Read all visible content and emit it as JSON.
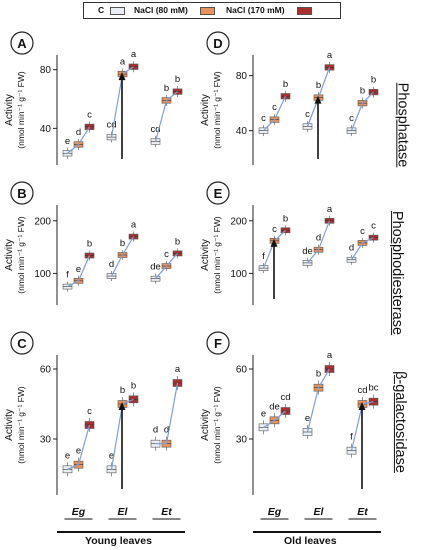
{
  "legend": {
    "items": [
      {
        "label": "C",
        "color": "#eaeff5"
      },
      {
        "label": "NaCl (80 mM)",
        "color": "#e8925a"
      },
      {
        "label": "NaCl (170 mM)",
        "color": "#a8302f"
      }
    ]
  },
  "side_titles": [
    "Phosphatase",
    "Phosphodiesterase",
    "β-galactosidase"
  ],
  "bottom_labels": {
    "young": "Young leaves",
    "old": "Old leaves"
  },
  "colors": {
    "control": "#eaeff5",
    "nacl80": "#e8925a",
    "nacl170": "#a8302f",
    "line": "#7f9ed6"
  },
  "chart_data": [
    {
      "panel": "A",
      "type": "box",
      "ylabel_line1": "Activity",
      "ylabel_line2": "(nmol min⁻¹ g⁻¹ FW)",
      "ylim": [
        15,
        90
      ],
      "yticks": [
        40,
        80
      ],
      "categories": [
        "Eg",
        "El",
        "Et"
      ],
      "series": [
        {
          "name": "C",
          "values": [
            23,
            34,
            31
          ],
          "letters": [
            "e",
            "cd",
            "cd"
          ]
        },
        {
          "name": "NaCl (80 mM)",
          "values": [
            29,
            77,
            59
          ],
          "letters": [
            "d",
            "a",
            "b"
          ]
        },
        {
          "name": "NaCl (170 mM)",
          "values": [
            41,
            82,
            65
          ],
          "letters": [
            "c",
            "a",
            "b"
          ]
        }
      ],
      "arrow_group": "El"
    },
    {
      "panel": "B",
      "type": "box",
      "ylabel_line1": "Activity",
      "ylabel_line2": "(nmol min⁻¹ g⁻¹ FW)",
      "ylim": [
        40,
        230
      ],
      "yticks": [
        100,
        200
      ],
      "categories": [
        "Eg",
        "El",
        "Et"
      ],
      "series": [
        {
          "name": "C",
          "values": [
            75,
            95,
            90
          ],
          "letters": [
            "f",
            "d",
            "de"
          ]
        },
        {
          "name": "NaCl (80 mM)",
          "values": [
            86,
            135,
            114
          ],
          "letters": [
            "e",
            "b",
            "c"
          ]
        },
        {
          "name": "NaCl (170 mM)",
          "values": [
            134,
            170,
            138
          ],
          "letters": [
            "b",
            "a",
            "b"
          ]
        }
      ],
      "arrow_group": null
    },
    {
      "panel": "C",
      "type": "box",
      "ylabel_line1": "Activity",
      "ylabel_line2": "(nmol min⁻¹ g⁻¹ FW)",
      "ylim": [
        6,
        66
      ],
      "yticks": [
        30,
        60
      ],
      "categories": [
        "Eg",
        "El",
        "Et"
      ],
      "series": [
        {
          "name": "C",
          "values": [
            17,
            17,
            28
          ],
          "letters": [
            "e",
            "e",
            "d"
          ]
        },
        {
          "name": "NaCl (80 mM)",
          "values": [
            19,
            45,
            28
          ],
          "letters": [
            "e",
            "b",
            "d"
          ]
        },
        {
          "name": "NaCl (170 mM)",
          "values": [
            36,
            47,
            54
          ],
          "letters": [
            "c",
            "b",
            "a"
          ]
        }
      ],
      "arrow_group": "El"
    },
    {
      "panel": "D",
      "type": "box",
      "ylabel_line1": "Activity",
      "ylabel_line2": "(nmol min⁻¹ g⁻¹ FW)",
      "ylim": [
        15,
        95
      ],
      "yticks": [
        40,
        80
      ],
      "categories": [
        "Eg",
        "El",
        "Et"
      ],
      "series": [
        {
          "name": "C",
          "values": [
            40,
            43,
            40
          ],
          "letters": [
            "c",
            "c",
            "c"
          ]
        },
        {
          "name": "NaCl (80 mM)",
          "values": [
            48,
            64,
            60
          ],
          "letters": [
            "c",
            "b",
            "b"
          ]
        },
        {
          "name": "NaCl (170 mM)",
          "values": [
            65,
            86,
            68
          ],
          "letters": [
            "b",
            "a",
            "b"
          ]
        }
      ],
      "arrow_group": "El"
    },
    {
      "panel": "E",
      "type": "box",
      "ylabel_line1": "Activity",
      "ylabel_line2": "(nmol min⁻¹ g⁻¹ FW)",
      "ylim": [
        40,
        230
      ],
      "yticks": [
        100,
        200
      ],
      "categories": [
        "Eg",
        "El",
        "Et"
      ],
      "series": [
        {
          "name": "C",
          "values": [
            110,
            120,
            126
          ],
          "letters": [
            "f",
            "de",
            "d"
          ]
        },
        {
          "name": "NaCl (80 mM)",
          "values": [
            162,
            145,
            158
          ],
          "letters": [
            "c",
            "d",
            "c"
          ]
        },
        {
          "name": "NaCl (170 mM)",
          "values": [
            182,
            200,
            168
          ],
          "letters": [
            "b",
            "a",
            "c"
          ]
        }
      ],
      "arrow_group": "Eg"
    },
    {
      "panel": "F",
      "type": "box",
      "ylabel_line1": "Activity",
      "ylabel_line2": "(nmol min⁻¹ g⁻¹ FW)",
      "ylim": [
        6,
        66
      ],
      "yticks": [
        30,
        60
      ],
      "categories": [
        "Eg",
        "El",
        "Et"
      ],
      "series": [
        {
          "name": "C",
          "values": [
            35,
            33,
            25
          ],
          "letters": [
            "e",
            "e",
            "f"
          ]
        },
        {
          "name": "NaCl (80 mM)",
          "values": [
            38,
            52,
            45
          ],
          "letters": [
            "de",
            "b",
            "cd"
          ]
        },
        {
          "name": "NaCl (170 mM)",
          "values": [
            42,
            60,
            46
          ],
          "letters": [
            "cd",
            "a",
            "bc"
          ]
        }
      ],
      "arrow_group": "Et"
    }
  ]
}
